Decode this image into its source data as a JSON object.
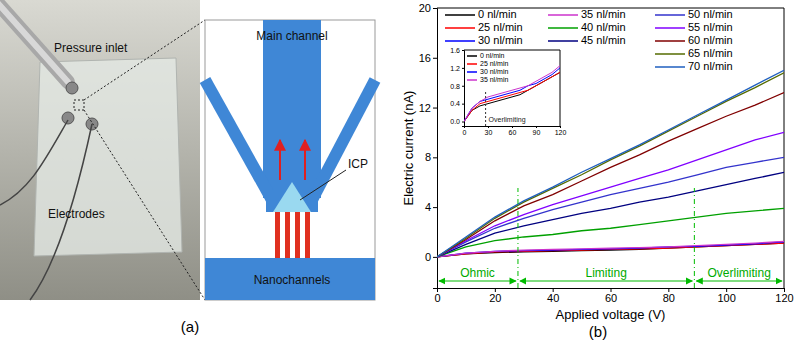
{
  "figure": {
    "panel_a": {
      "label": "(a)",
      "photo_labels": [
        "Pressure inlet",
        "Electrodes"
      ],
      "schematic_labels": [
        "Main channel",
        "Nanochannels",
        "ICP"
      ]
    },
    "panel_b": {
      "label": "(b)"
    }
  },
  "chart_data": [
    {
      "type": "line",
      "x_label": "Applied voltage (V)",
      "y_label": "Electric current (nA)",
      "x": [
        0,
        10,
        20,
        30,
        40,
        50,
        60,
        70,
        80,
        90,
        100,
        110,
        120
      ],
      "xlim": [
        0,
        120
      ],
      "xticks": [
        0,
        20,
        40,
        60,
        80,
        100,
        120
      ],
      "ylim": [
        -2.5,
        20
      ],
      "yticks": [
        0,
        4,
        8,
        12,
        16,
        20
      ],
      "grid": false,
      "legend": "top",
      "series": [
        {
          "name": "0 nl/min",
          "color": "#000000",
          "values": [
            0,
            0.25,
            0.35,
            0.4,
            0.45,
            0.5,
            0.55,
            0.6,
            0.7,
            0.8,
            0.9,
            1.0,
            1.1
          ]
        },
        {
          "name": "25 nl/min",
          "color": "#ff0000",
          "values": [
            0,
            0.25,
            0.4,
            0.45,
            0.5,
            0.55,
            0.6,
            0.65,
            0.7,
            0.8,
            0.9,
            1.0,
            1.1
          ]
        },
        {
          "name": "30 nl/min",
          "color": "#0000ff",
          "values": [
            0,
            0.3,
            0.45,
            0.5,
            0.55,
            0.6,
            0.65,
            0.7,
            0.8,
            0.85,
            0.95,
            1.05,
            1.2
          ]
        },
        {
          "name": "35 nl/min",
          "color": "#cc33cc",
          "values": [
            0,
            0.3,
            0.45,
            0.55,
            0.6,
            0.65,
            0.7,
            0.75,
            0.8,
            0.9,
            1.0,
            1.1,
            1.25
          ]
        },
        {
          "name": "40 nl/min",
          "color": "#00a000",
          "values": [
            0,
            0.8,
            1.3,
            1.6,
            1.8,
            2.1,
            2.3,
            2.6,
            2.9,
            3.2,
            3.5,
            3.7,
            3.9
          ]
        },
        {
          "name": "45 nl/min",
          "color": "#000080",
          "values": [
            0,
            1.0,
            1.9,
            2.5,
            3.0,
            3.5,
            3.9,
            4.4,
            4.8,
            5.3,
            5.8,
            6.3,
            6.8
          ]
        },
        {
          "name": "50 nl/min",
          "color": "#3333cc",
          "values": [
            0,
            1.2,
            2.3,
            3.1,
            3.8,
            4.4,
            5.0,
            5.5,
            6.0,
            6.6,
            7.2,
            7.6,
            8.0
          ]
        },
        {
          "name": "55 nl/min",
          "color": "#8000ff",
          "values": [
            0,
            1.3,
            2.5,
            3.4,
            4.2,
            4.9,
            5.6,
            6.3,
            7.0,
            7.8,
            8.6,
            9.4,
            10.0
          ]
        },
        {
          "name": "60 nl/min",
          "color": "#800000",
          "values": [
            0,
            1.4,
            2.9,
            4.1,
            5.0,
            6.1,
            7.2,
            8.2,
            9.3,
            10.3,
            11.3,
            12.2,
            13.2
          ]
        },
        {
          "name": "65 nl/min",
          "color": "#556b00",
          "values": [
            0,
            1.5,
            3.1,
            4.4,
            5.5,
            6.6,
            7.8,
            8.9,
            10.1,
            11.3,
            12.5,
            13.6,
            14.8
          ]
        },
        {
          "name": "70 nl/min",
          "color": "#1f5fbf",
          "values": [
            0,
            1.6,
            3.2,
            4.5,
            5.6,
            6.8,
            7.9,
            9.0,
            10.2,
            11.4,
            12.6,
            13.8,
            15.0
          ]
        }
      ],
      "regions": [
        {
          "label": "Ohmic",
          "from": 0,
          "to": 28
        },
        {
          "label": "Limiting",
          "from": 28,
          "to": 89
        },
        {
          "label": "Overlimiting",
          "from": 89,
          "to": 120
        }
      ]
    },
    {
      "type": "line",
      "x": [
        0,
        10,
        20,
        30,
        40,
        50,
        60,
        70,
        80,
        90,
        100,
        110,
        120
      ],
      "xlim": [
        0,
        120
      ],
      "xticks": [
        0,
        30,
        60,
        90,
        120
      ],
      "ylim": [
        -0.1,
        1.6
      ],
      "yticks": [
        {
          "value": 0,
          "label": "0.0"
        },
        0.4,
        0.8,
        1.2,
        1.6
      ],
      "grid": false,
      "legend": "upper left",
      "series": [
        {
          "name": "0 nl/min",
          "color": "#000000",
          "values": [
            0,
            0.25,
            0.35,
            0.4,
            0.45,
            0.5,
            0.55,
            0.6,
            0.7,
            0.8,
            0.9,
            1.0,
            1.1
          ]
        },
        {
          "name": "25 nl/min",
          "color": "#ff0000",
          "values": [
            0,
            0.25,
            0.4,
            0.45,
            0.5,
            0.55,
            0.6,
            0.65,
            0.7,
            0.8,
            0.9,
            1.0,
            1.1
          ]
        },
        {
          "name": "30 nl/min",
          "color": "#0000ff",
          "values": [
            0,
            0.3,
            0.45,
            0.5,
            0.55,
            0.6,
            0.65,
            0.7,
            0.8,
            0.85,
            0.95,
            1.05,
            1.2
          ]
        },
        {
          "name": "35 nl/min",
          "color": "#cc33cc",
          "values": [
            0,
            0.3,
            0.45,
            0.55,
            0.6,
            0.65,
            0.7,
            0.75,
            0.8,
            0.9,
            1.0,
            1.1,
            1.25
          ]
        }
      ],
      "annotations": [
        {
          "label": "Overlimiting",
          "x": 27
        }
      ]
    }
  ]
}
